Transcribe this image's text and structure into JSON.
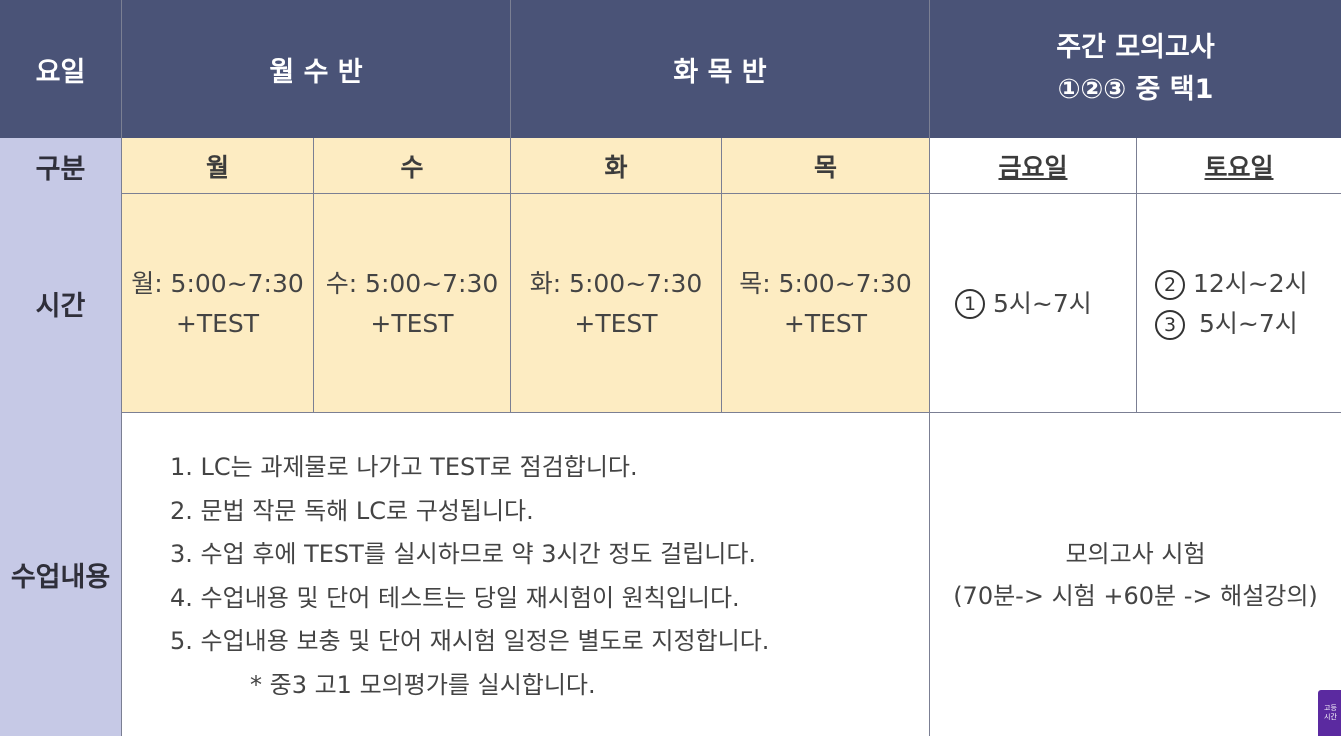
{
  "header": {
    "day": "요일",
    "mon_wed": "월 수 반",
    "tue_thu": "화 목 반",
    "weekly_mock_title": "주간 모의고사",
    "weekly_mock_sub": "①②③ 중 택1"
  },
  "row_labels": {
    "division": "구분",
    "time": "시간",
    "content": "수업내용"
  },
  "days": {
    "mon": "월",
    "wed": "수",
    "tue": "화",
    "thu": "목",
    "fri": "금요일",
    "sat": "토요일"
  },
  "times": {
    "mon_line1": "월: 5:00~7:30",
    "mon_line2": "+TEST",
    "wed_line1": "수: 5:00~7:30",
    "wed_line2": "+TEST",
    "tue_line1": "화: 5:00~7:30",
    "tue_line2": "+TEST",
    "thu_line1": "목: 5:00~7:30",
    "thu_line2": "+TEST",
    "fri_num": "1",
    "fri_text": "5시~7시",
    "sat1_num": "2",
    "sat1_text": "12시~2시",
    "sat2_num": "3",
    "sat2_text": "5시~7시"
  },
  "content": {
    "items": [
      "1. LC는 과제물로 나가고 TEST로 점검합니다.",
      "2. 문법 작문 독해 LC로 구성됩니다.",
      "3. 수업 후에 TEST를 실시하므로 약 3시간 정도 걸립니다.",
      "4. 수업내용 및 단어 테스트는 당일 재시험이 원칙입니다.",
      "5. 수업내용 보충 및 단어 재시험 일정은 별도로 지정합니다."
    ],
    "note": "* 중3 고1 모의평가를 실시합니다.",
    "mock_line1": "모의고사 시험",
    "mock_line2": "(70분-> 시험 +60분 -> 해설강의)"
  },
  "corner_badge": {
    "line1": "고등",
    "line2": "시간"
  }
}
